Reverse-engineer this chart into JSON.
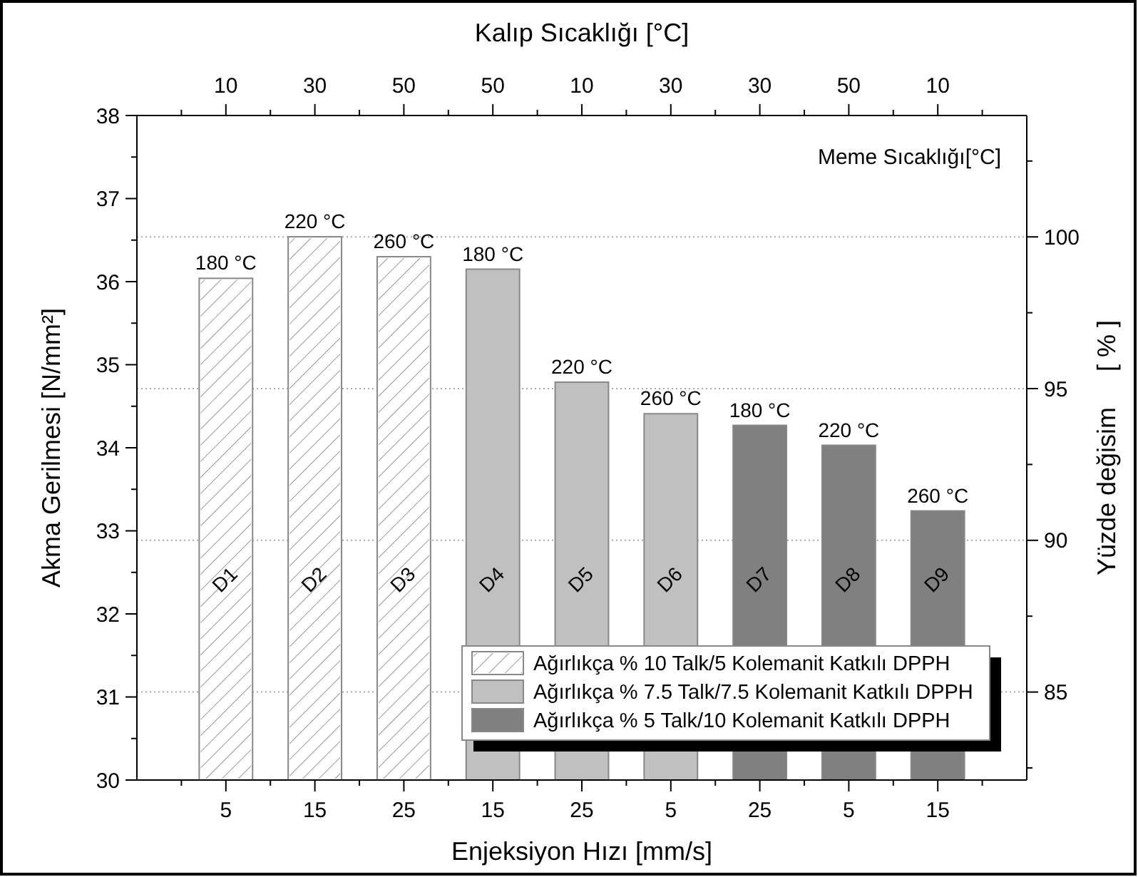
{
  "chart_data": {
    "type": "bar",
    "xlabel": "Enjeksiyon Hızı [mm/s]",
    "x2label": "Kalıp Sıcaklığı [°C]",
    "ylabel": "Akma Gerilmesi [N/mm²]",
    "y2label": "Yüzde değisim     [ % ]",
    "categories": [
      "5",
      "15",
      "25",
      "15",
      "25",
      "5",
      "25",
      "5",
      "15"
    ],
    "ylim": [
      30,
      38
    ],
    "yticks": [
      30,
      31,
      32,
      33,
      34,
      35,
      36,
      37,
      38
    ],
    "y2lim": [
      82.1,
      104.0
    ],
    "y2ticks": [
      85,
      90,
      95,
      100
    ],
    "grid": true,
    "legend": "bottom right",
    "series": [
      {
        "name": "Ağırlıkça % 10 Talk/5 Kolemanit Katkılı DPPH",
        "color": "#ffffff",
        "values": [
          36.04,
          36.54,
          36.3,
          null,
          null,
          null,
          null,
          null,
          null
        ]
      },
      {
        "name": "Ağırlıkça % 7.5 Talk/7.5 Kolemanit Katkılı DPPH",
        "color": "#c0c0c0",
        "values": [
          null,
          null,
          null,
          36.15,
          34.79,
          34.41,
          null,
          null,
          null
        ]
      },
      {
        "name": "Ağırlıkça % 5 Talk/10 Kolemanit Katkılı DPPH",
        "color": "#808080",
        "values": [
          null,
          null,
          null,
          null,
          null,
          null,
          34.27,
          34.03,
          33.24
        ]
      }
    ],
    "annotations": [
      "Meme Sıcaklığı[°C]",
      "180 °C",
      "220 °C",
      "260 °C",
      "180 °C",
      "220 °C",
      "260 °C",
      "180 °C",
      "220 °C",
      "260 °C",
      "D1",
      "D2",
      "D3",
      "D4",
      "D5",
      "D6",
      "D7",
      "D8",
      "D9",
      "10",
      "30",
      "50",
      "50",
      "10",
      "30",
      "30",
      "50",
      "10"
    ]
  }
}
